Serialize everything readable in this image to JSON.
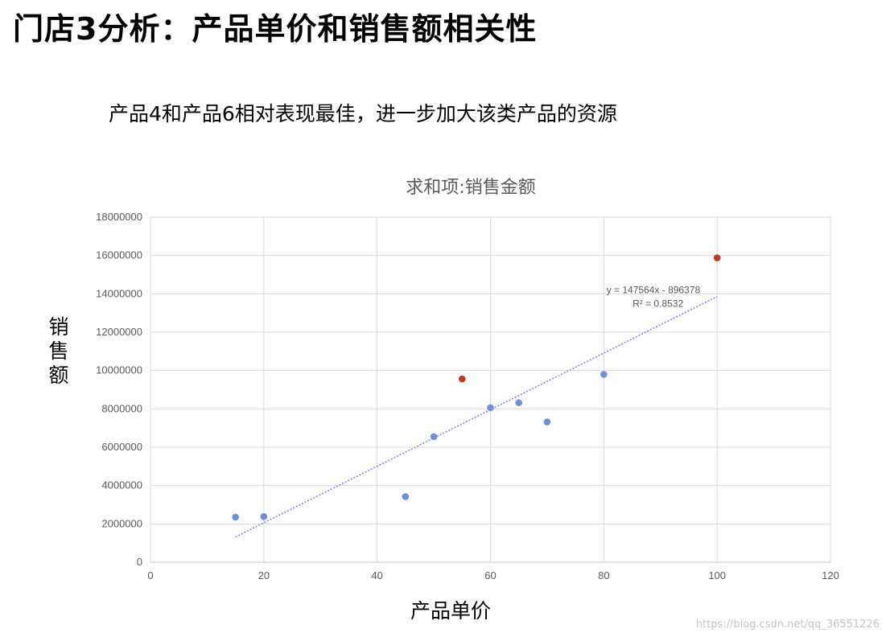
{
  "header": {
    "title": "门店3分析：产品单价和销售额相关性",
    "subtitle": "产品4和产品6相对表现最佳，进一步加大该类产品的资源"
  },
  "watermark": "https://blog.csdn.net/qq_36551226",
  "colors": {
    "normal_point": "#6f8fd6",
    "highlight_point": "#c0392b",
    "trendline": "#6f8fd6",
    "grid": "#d9d9d9"
  },
  "chart_data": {
    "type": "scatter",
    "title": "求和项:销售金额",
    "xlabel": "产品单价",
    "ylabel": "销售额",
    "xlim": [
      0,
      120
    ],
    "ylim": [
      0,
      18000000
    ],
    "x_ticks": [
      0,
      20,
      40,
      60,
      80,
      100,
      120
    ],
    "y_ticks": [
      0,
      2000000,
      4000000,
      6000000,
      8000000,
      10000000,
      12000000,
      14000000,
      16000000,
      18000000
    ],
    "grid": true,
    "points": [
      {
        "x": 15,
        "y": 2350000,
        "highlight": false
      },
      {
        "x": 20,
        "y": 2380000,
        "highlight": false
      },
      {
        "x": 45,
        "y": 3420000,
        "highlight": false
      },
      {
        "x": 50,
        "y": 6550000,
        "highlight": false
      },
      {
        "x": 55,
        "y": 9560000,
        "highlight": true
      },
      {
        "x": 60,
        "y": 8060000,
        "highlight": false
      },
      {
        "x": 65,
        "y": 8320000,
        "highlight": false
      },
      {
        "x": 70,
        "y": 7320000,
        "highlight": false
      },
      {
        "x": 80,
        "y": 9800000,
        "highlight": false
      },
      {
        "x": 100,
        "y": 15880000,
        "highlight": true
      }
    ],
    "trendline": {
      "slope": 147564,
      "intercept": -896378,
      "x_range": [
        15,
        100
      ],
      "equation": "y = 147564x - 896378",
      "r_squared": "R² = 0.8532"
    }
  }
}
